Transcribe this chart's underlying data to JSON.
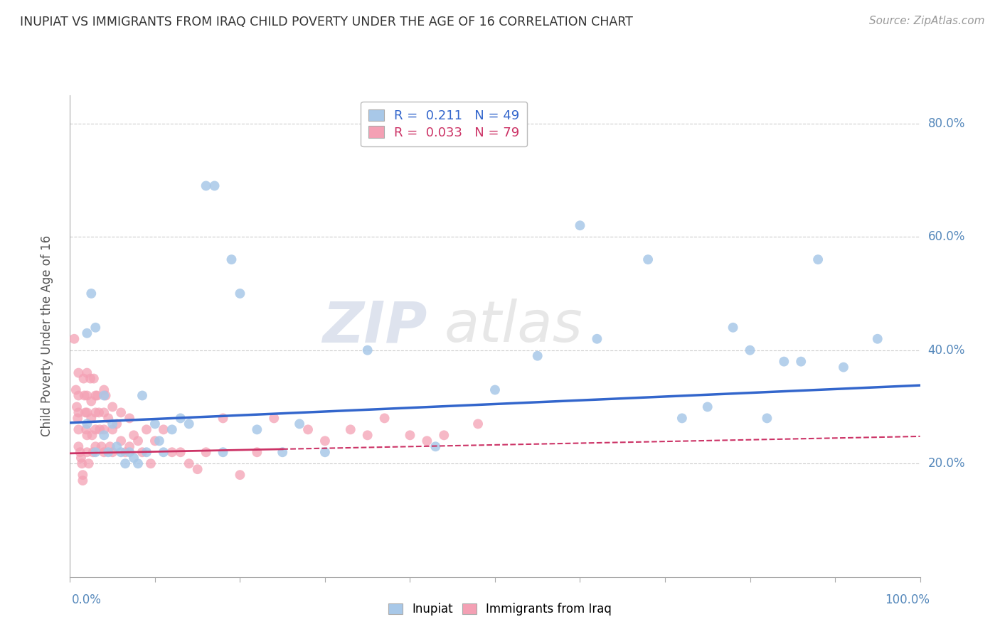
{
  "title": "INUPIAT VS IMMIGRANTS FROM IRAQ CHILD POVERTY UNDER THE AGE OF 16 CORRELATION CHART",
  "source": "Source: ZipAtlas.com",
  "ylabel": "Child Poverty Under the Age of 16",
  "legend_r1": "R =  0.211   N = 49",
  "legend_r2": "R =  0.033   N = 79",
  "inupiat_color": "#a8c8e8",
  "iraq_color": "#f4a0b4",
  "line_inupiat_color": "#3366cc",
  "line_iraq_color": "#cc3366",
  "watermark_zip": "ZIP",
  "watermark_atlas": "atlas",
  "xlim": [
    0,
    1
  ],
  "ylim": [
    0,
    0.85
  ],
  "ytick_vals": [
    0.2,
    0.4,
    0.6,
    0.8
  ],
  "ytick_labels": [
    "20.0%",
    "40.0%",
    "60.0%",
    "80.0%"
  ],
  "inupiat_x": [
    0.02,
    0.02,
    0.025,
    0.03,
    0.03,
    0.04,
    0.04,
    0.045,
    0.05,
    0.055,
    0.06,
    0.065,
    0.07,
    0.075,
    0.08,
    0.085,
    0.09,
    0.1,
    0.105,
    0.11,
    0.12,
    0.13,
    0.14,
    0.16,
    0.17,
    0.18,
    0.19,
    0.2,
    0.22,
    0.25,
    0.27,
    0.3,
    0.35,
    0.43,
    0.5,
    0.55,
    0.6,
    0.62,
    0.68,
    0.72,
    0.75,
    0.78,
    0.8,
    0.82,
    0.84,
    0.86,
    0.88,
    0.91,
    0.95
  ],
  "inupiat_y": [
    0.43,
    0.27,
    0.5,
    0.22,
    0.44,
    0.25,
    0.32,
    0.22,
    0.27,
    0.23,
    0.22,
    0.2,
    0.22,
    0.21,
    0.2,
    0.32,
    0.22,
    0.27,
    0.24,
    0.22,
    0.26,
    0.28,
    0.27,
    0.69,
    0.69,
    0.22,
    0.56,
    0.5,
    0.26,
    0.22,
    0.27,
    0.22,
    0.4,
    0.23,
    0.33,
    0.39,
    0.62,
    0.42,
    0.56,
    0.28,
    0.3,
    0.44,
    0.4,
    0.28,
    0.38,
    0.38,
    0.56,
    0.37,
    0.42
  ],
  "iraq_x": [
    0.005,
    0.007,
    0.008,
    0.009,
    0.01,
    0.01,
    0.01,
    0.01,
    0.01,
    0.012,
    0.013,
    0.014,
    0.015,
    0.015,
    0.016,
    0.017,
    0.018,
    0.019,
    0.02,
    0.02,
    0.02,
    0.02,
    0.02,
    0.022,
    0.024,
    0.025,
    0.025,
    0.026,
    0.027,
    0.028,
    0.03,
    0.03,
    0.03,
    0.03,
    0.032,
    0.034,
    0.035,
    0.037,
    0.04,
    0.04,
    0.04,
    0.04,
    0.042,
    0.045,
    0.047,
    0.05,
    0.05,
    0.05,
    0.055,
    0.06,
    0.06,
    0.065,
    0.07,
    0.07,
    0.075,
    0.08,
    0.085,
    0.09,
    0.095,
    0.1,
    0.11,
    0.12,
    0.13,
    0.14,
    0.15,
    0.16,
    0.18,
    0.2,
    0.22,
    0.24,
    0.28,
    0.3,
    0.33,
    0.35,
    0.37,
    0.4,
    0.42,
    0.44,
    0.48
  ],
  "iraq_y": [
    0.42,
    0.33,
    0.3,
    0.28,
    0.36,
    0.32,
    0.29,
    0.26,
    0.23,
    0.22,
    0.21,
    0.2,
    0.18,
    0.17,
    0.35,
    0.32,
    0.29,
    0.26,
    0.36,
    0.32,
    0.29,
    0.25,
    0.22,
    0.2,
    0.35,
    0.31,
    0.28,
    0.25,
    0.22,
    0.35,
    0.32,
    0.29,
    0.26,
    0.23,
    0.32,
    0.29,
    0.26,
    0.23,
    0.33,
    0.29,
    0.26,
    0.22,
    0.32,
    0.28,
    0.23,
    0.3,
    0.26,
    0.22,
    0.27,
    0.29,
    0.24,
    0.22,
    0.28,
    0.23,
    0.25,
    0.24,
    0.22,
    0.26,
    0.2,
    0.24,
    0.26,
    0.22,
    0.22,
    0.2,
    0.19,
    0.22,
    0.28,
    0.18,
    0.22,
    0.28,
    0.26,
    0.24,
    0.26,
    0.25,
    0.28,
    0.25,
    0.24,
    0.25,
    0.27
  ],
  "background_color": "#ffffff",
  "grid_color": "#cccccc",
  "marker_size": 100,
  "line_inupiat_start_y": 0.272,
  "line_inupiat_end_y": 0.338,
  "line_iraq_start_y": 0.218,
  "line_iraq_end_y": 0.248
}
